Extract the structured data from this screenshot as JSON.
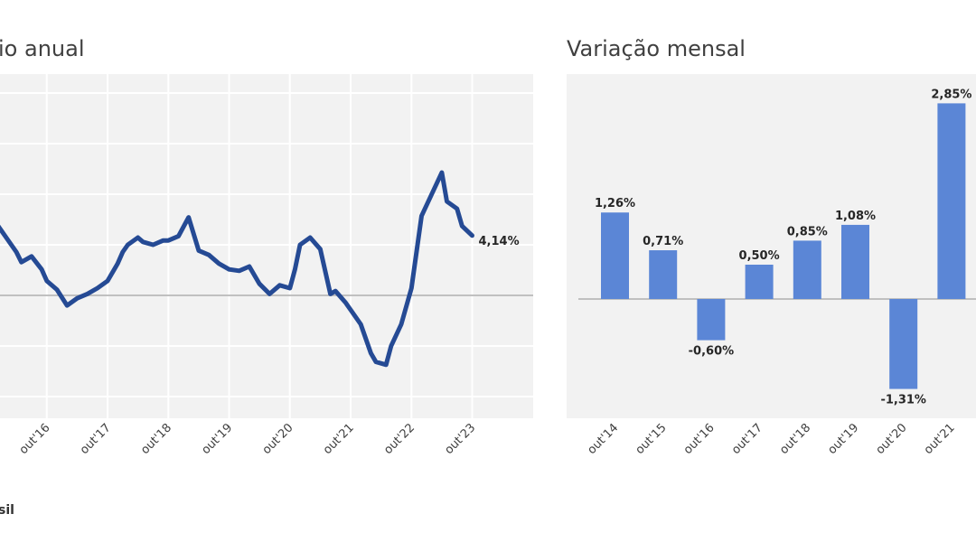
{
  "colors": {
    "line": "#254a94",
    "bar": "#5b86d6",
    "panel_bg": "#f2f2f2",
    "grid": "#ffffff",
    "zero": "#c0c0c0"
  },
  "source_text": "sil",
  "chart_data": [
    {
      "type": "line",
      "title": "io anual",
      "x_ticks": [
        "out'16",
        "out'17",
        "out'18",
        "out'19",
        "out'20",
        "out'21",
        "out'22",
        "out'23"
      ],
      "x_range": [
        "2015-10",
        "2023-10"
      ],
      "end_label": "4,14%",
      "grid": true,
      "series": [
        {
          "x": [
            "2015-10",
            "2015-12",
            "2016-02",
            "2016-04",
            "2016-05",
            "2016-07",
            "2016-09",
            "2016-10",
            "2016-12",
            "2017-02",
            "2017-04",
            "2017-06",
            "2017-08",
            "2017-10",
            "2017-12",
            "2018-01",
            "2018-02",
            "2018-04",
            "2018-05",
            "2018-07",
            "2018-09",
            "2018-10",
            "2018-12",
            "2019-02",
            "2019-04",
            "2019-06",
            "2019-08",
            "2019-10",
            "2019-12",
            "2020-02",
            "2020-04",
            "2020-06",
            "2020-08",
            "2020-10",
            "2020-11",
            "2020-12",
            "2021-02",
            "2021-04",
            "2021-06",
            "2021-07",
            "2021-09",
            "2021-10",
            "2021-12",
            "2022-02",
            "2022-03",
            "2022-05",
            "2022-06",
            "2022-08",
            "2022-10",
            "2022-12",
            "2023-02",
            "2023-04",
            "2023-05",
            "2023-07",
            "2023-08",
            "2023-10"
          ],
          "y": [
            5.8,
            5.0,
            4.0,
            3.0,
            2.3,
            2.7,
            1.8,
            1.0,
            0.4,
            -0.7,
            -0.2,
            0.1,
            0.5,
            1.0,
            2.2,
            3.0,
            3.5,
            4.0,
            3.7,
            3.5,
            3.8,
            3.8,
            4.1,
            5.4,
            3.1,
            2.8,
            2.2,
            1.8,
            1.7,
            2.0,
            0.8,
            0.1,
            0.7,
            0.5,
            1.8,
            3.5,
            4.0,
            3.2,
            0.1,
            0.3,
            -0.5,
            -1.0,
            -2.0,
            -4.0,
            -4.6,
            -4.8,
            -3.5,
            -2.0,
            0.5,
            5.5,
            7.0,
            8.5,
            6.5,
            6.0,
            4.8,
            4.14
          ]
        }
      ]
    },
    {
      "type": "bar",
      "title": "Variação mensal",
      "categories": [
        "out'14",
        "out'15",
        "out'16",
        "out'17",
        "out'18",
        "out'19",
        "out'20",
        "out'21"
      ],
      "values": [
        1.26,
        0.71,
        -0.6,
        0.5,
        0.85,
        1.08,
        -1.31,
        2.85
      ],
      "data_labels": [
        "1,26%",
        "0,71%",
        "-0,60%",
        "0,50%",
        "0,85%",
        "1,08%",
        "-1,31%",
        "2,85%"
      ]
    }
  ]
}
